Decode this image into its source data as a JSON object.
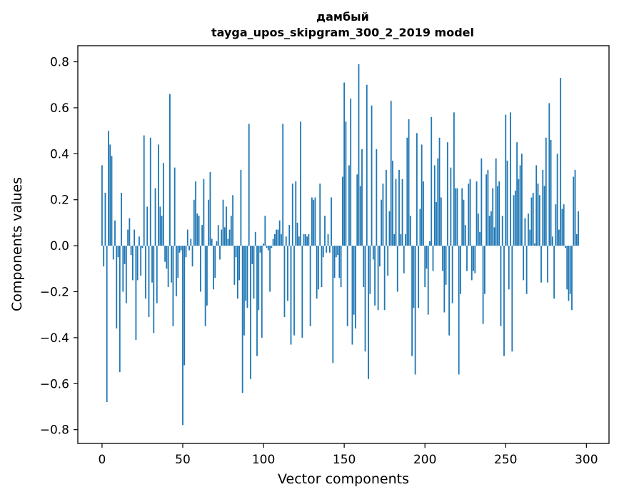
{
  "chart_data": {
    "type": "bar",
    "title": "дамбый",
    "subtitle": "tayga_upos_skipgram_300_2_2019 model",
    "xlabel": "Vector components",
    "ylabel": "Components values",
    "xlim": [
      -15,
      314
    ],
    "ylim": [
      -0.86,
      0.87
    ],
    "xticks": [
      0,
      50,
      100,
      150,
      200,
      250,
      300
    ],
    "xtick_labels": [
      "0",
      "50",
      "100",
      "150",
      "200",
      "250",
      "300"
    ],
    "yticks": [
      -0.8,
      -0.6,
      -0.4,
      -0.2,
      0.0,
      0.2,
      0.4,
      0.6,
      0.8
    ],
    "ytick_labels": [
      "−0.8",
      "−0.6",
      "−0.4",
      "−0.2",
      "0.0",
      "0.2",
      "0.4",
      "0.6",
      "0.8"
    ],
    "grid": false,
    "bar_color": "#1f77b4",
    "values": [
      0.35,
      -0.09,
      0.23,
      -0.68,
      0.5,
      0.44,
      0.39,
      -0.06,
      0.11,
      -0.36,
      -0.05,
      -0.55,
      0.23,
      -0.2,
      -0.08,
      -0.25,
      0.07,
      0.12,
      -0.04,
      -0.15,
      0.07,
      -0.41,
      -0.15,
      0.04,
      -0.13,
      -0.01,
      0.48,
      -0.23,
      0.17,
      -0.31,
      0.47,
      -0.16,
      -0.38,
      0.25,
      -0.25,
      0.44,
      0.17,
      0.13,
      0.36,
      -0.07,
      -0.1,
      -0.18,
      0.66,
      -0.16,
      -0.35,
      0.34,
      -0.22,
      -0.14,
      -0.03,
      -0.02,
      -0.78,
      -0.52,
      -0.05,
      0.07,
      -0.02,
      0.03,
      -0.09,
      0.2,
      0.28,
      0.14,
      0.13,
      -0.2,
      0.09,
      0.29,
      -0.35,
      -0.26,
      0.2,
      0.32,
      0.03,
      -0.19,
      -0.14,
      0.02,
      0.09,
      -0.06,
      0.07,
      0.2,
      0.08,
      0.17,
      0.03,
      0.07,
      0.13,
      0.22,
      -0.17,
      -0.05,
      -0.23,
      -0.15,
      0.33,
      -0.64,
      -0.39,
      -0.24,
      -0.27,
      0.53,
      -0.58,
      -0.08,
      -0.23,
      0.06,
      -0.48,
      -0.28,
      -0.03,
      -0.4,
      0.01,
      0.13,
      -0.01,
      -0.02,
      -0.2,
      -0.01,
      0.03,
      0.05,
      0.07,
      0.07,
      0.11,
      0.05,
      0.53,
      -0.31,
      0.04,
      -0.24,
      0.09,
      -0.43,
      0.27,
      -0.39,
      0.28,
      0.1,
      0.04,
      0.54,
      -0.4,
      0.05,
      0.05,
      0.04,
      0.05,
      -0.35,
      0.21,
      0.2,
      0.21,
      -0.23,
      -0.19,
      0.27,
      -0.18,
      -0.05,
      0.13,
      -0.03,
      0.05,
      -0.03,
      0.21,
      -0.51,
      -0.14,
      -0.05,
      -0.04,
      -0.14,
      -0.18,
      0.3,
      0.71,
      0.54,
      -0.35,
      0.35,
      0.64,
      -0.43,
      -0.3,
      -0.36,
      0.31,
      0.79,
      0.26,
      0.42,
      -0.18,
      -0.46,
      0.7,
      -0.58,
      -0.21,
      0.61,
      -0.06,
      -0.26,
      0.42,
      -0.28,
      -0.09,
      0.2,
      0.27,
      -0.28,
      0.33,
      -0.13,
      0.15,
      0.63,
      0.37,
      0.05,
      0.29,
      -0.2,
      0.33,
      0.05,
      0.29,
      -0.12,
      0.05,
      0.47,
      0.55,
      0.13,
      -0.48,
      -0.27,
      -0.56,
      0.49,
      -0.27,
      0.16,
      0.44,
      0.28,
      -0.18,
      -0.1,
      -0.3,
      0.02,
      0.56,
      -0.11,
      0.35,
      0.19,
      0.38,
      0.47,
      0.21,
      -0.11,
      -0.29,
      -0.17,
      0.45,
      -0.39,
      0.34,
      -0.25,
      0.58,
      0.25,
      0.25,
      -0.56,
      -0.21,
      0.25,
      0.2,
      0.09,
      -0.11,
      0.27,
      0.29,
      -0.15,
      -0.11,
      -0.12,
      0.28,
      0.14,
      0.06,
      0.38,
      -0.34,
      -0.21,
      0.31,
      0.33,
      0.13,
      0.15,
      0.25,
      0.08,
      0.38,
      0.26,
      0.28,
      -0.35,
      0.13,
      -0.48,
      0.57,
      0.37,
      -0.19,
      0.58,
      -0.46,
      0.22,
      0.24,
      0.45,
      0.29,
      0.35,
      0.4,
      -0.15,
      0.12,
      -0.21,
      0.14,
      0.07,
      0.21,
      0.23,
      0.01,
      0.35,
      0.27,
      0.22,
      -0.16,
      0.33,
      0.26,
      0.47,
      -0.16,
      0.62,
      0.46,
      0.04,
      -0.23,
      0.18,
      0.4,
      0.07,
      0.73,
      0.16,
      0.18,
      -0.01,
      -0.19,
      -0.24,
      -0.21,
      -0.28,
      0.3,
      0.33,
      0.05,
      0.15
    ]
  }
}
